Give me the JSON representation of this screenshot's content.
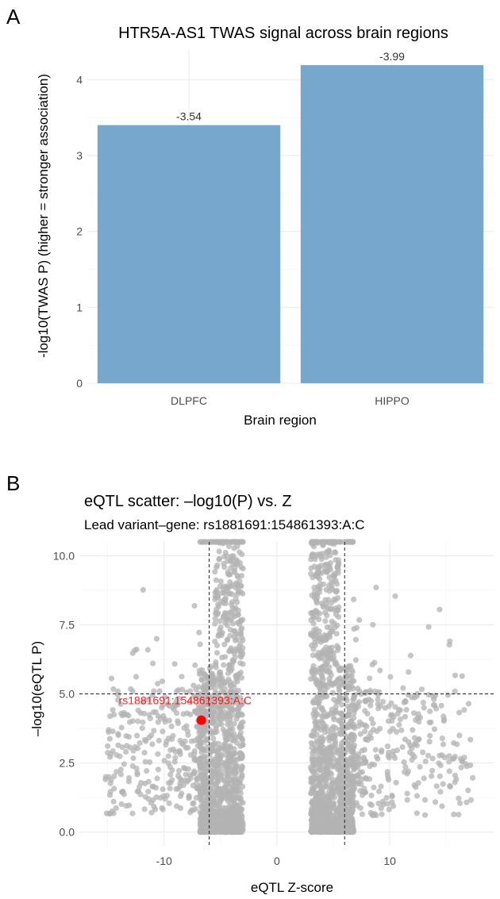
{
  "panels": {
    "a_label": "A",
    "b_label": "B"
  },
  "chart_data": [
    {
      "type": "bar",
      "title": "HTR5A-AS1 TWAS signal across brain regions",
      "xlabel": "Brain region",
      "ylabel": "-log10(TWAS P)  (higher = stronger association)",
      "categories": [
        "DLPFC",
        "HIPPO"
      ],
      "values": [
        3.4,
        4.19
      ],
      "data_labels": [
        "-3.54",
        "-3.99"
      ],
      "ylim": [
        0,
        4.4
      ],
      "yticks": [
        0,
        1,
        2,
        3,
        4
      ],
      "bar_color": "#78a7cd",
      "grid": true
    },
    {
      "type": "scatter",
      "title": "eQTL scatter: –log10(P) vs. Z",
      "subtitle": "Lead variant–gene: rs1881691:154861393:A:C",
      "xlabel": "eQTL Z-score",
      "ylabel": "–log10(eQTL P)",
      "xlim": [
        -17.5,
        19.2
      ],
      "ylim": [
        -0.5,
        10.5
      ],
      "xticks": [
        -10,
        0,
        10
      ],
      "yticks": [
        0.0,
        2.5,
        5.0,
        7.5,
        10.0
      ],
      "ytick_labels": [
        "0.0",
        "2.5",
        "5.0",
        "7.5",
        "10.0"
      ],
      "point_color": "#b3b3b3",
      "vlines": [
        -6,
        6
      ],
      "hline": 5,
      "highlight": {
        "label": "rs1881691:154861393:A:C",
        "x": -6.7,
        "y": 4.05,
        "color": "#ff0000"
      },
      "grid": true,
      "clusters": [
        {
          "name": "",
          "n": 1400,
          "x_min": -6.8,
          "x_max": -3.0,
          "y_max": 10.5,
          "shape": "tail"
        },
        {
          "name": "",
          "n": 1400,
          "x_min": 3.0,
          "x_max": 6.8,
          "y_max": 10.5,
          "shape": "tail"
        },
        {
          "name": "",
          "n": 320,
          "x_min": -15.2,
          "x_max": -6.8,
          "y_max": 9.3,
          "shape": "spread"
        },
        {
          "name": "",
          "n": 320,
          "x_min": 6.8,
          "x_max": 17.5,
          "y_max": 9.3,
          "shape": "spread"
        }
      ]
    }
  ]
}
